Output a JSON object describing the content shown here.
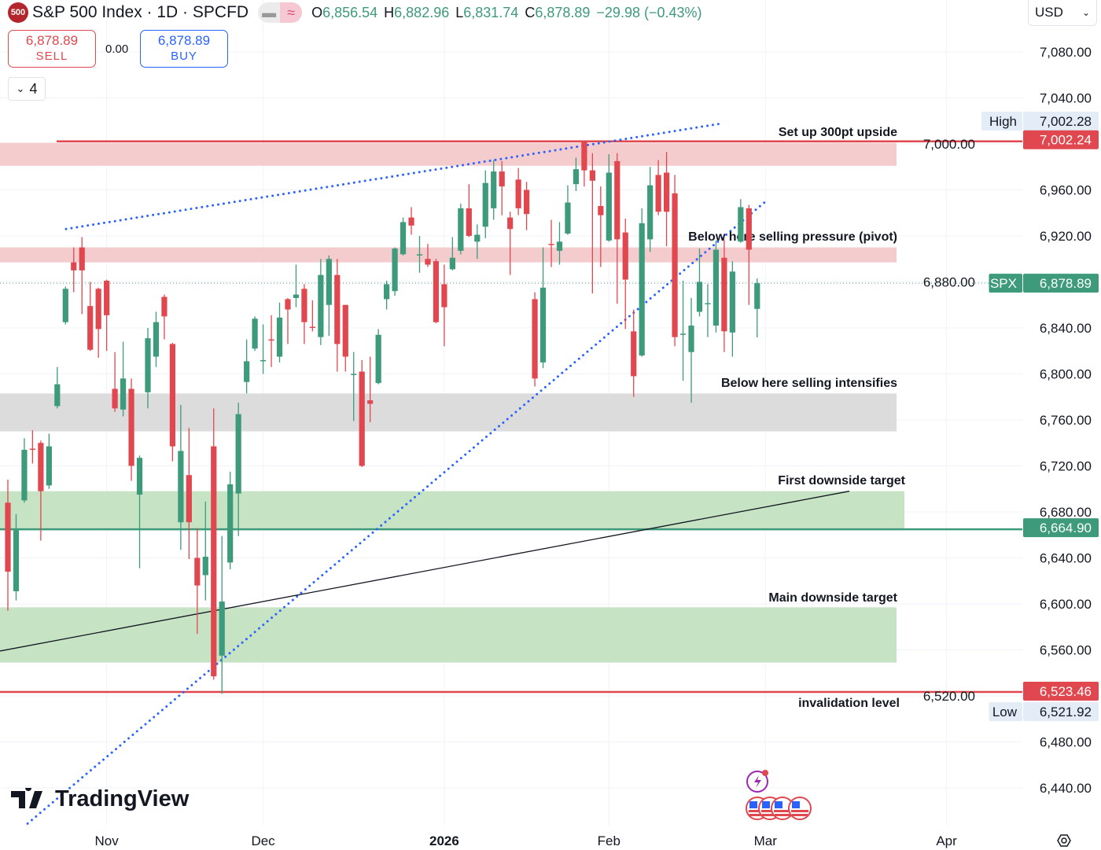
{
  "header": {
    "symbol_badge": "500",
    "title": "S&P 500 Index · 1D · SPCFD",
    "open_label": "O",
    "open": "6,856.54",
    "high_label": "H",
    "high": "6,882.96",
    "low_label": "L",
    "low": "6,831.74",
    "close_label": "C",
    "close": "6,878.89",
    "change": "−29.98 (−0.43%)"
  },
  "trade": {
    "sell_price": "6,878.89",
    "sell_label": "SELL",
    "spread": "0.00",
    "buy_price": "6,878.89",
    "buy_label": "BUY"
  },
  "indicators_toggle": {
    "count": "4"
  },
  "currency": "USD",
  "logo": "TradingView",
  "colors": {
    "up": "#3d9a7a",
    "down": "#e0474f",
    "trend": "#2962ff",
    "resistance_zone": "#f4cccd",
    "support_zone": "#c6e3c4",
    "neutral_zone": "#dcdcdd"
  },
  "chart_data": {
    "type": "candlestick",
    "symbol": "SPX",
    "ylim": [
      6410,
      7125
    ],
    "y_ticks": [
      "7,080.00",
      "7,040.00",
      "7,000.00",
      "6,960.00",
      "6,920.00",
      "6,880.00",
      "6,840.00",
      "6,800.00",
      "6,760.00",
      "6,720.00",
      "6,680.00",
      "6,640.00",
      "6,600.00",
      "6,560.00",
      "6,520.00",
      "6,480.00",
      "6,440.00"
    ],
    "y_tick_values": [
      7080,
      7040,
      7000,
      6960,
      6920,
      6880,
      6840,
      6800,
      6760,
      6720,
      6680,
      6640,
      6600,
      6560,
      6520,
      6480,
      6440
    ],
    "x_ticks": [
      "Nov",
      "Dec",
      "2026",
      "Feb",
      "Mar",
      "Apr"
    ],
    "grid": true,
    "candles_columns": [
      "date",
      "open",
      "high",
      "low",
      "close"
    ],
    "candles": [
      [
        "2025-10-16",
        6688,
        6708,
        6594,
        6628
      ],
      [
        "2025-10-17",
        6611,
        6678,
        6603,
        6664
      ],
      [
        "2025-10-20",
        6690,
        6744,
        6688,
        6734
      ],
      [
        "2025-10-21",
        6735,
        6751,
        6722,
        6734
      ],
      [
        "2025-10-22",
        6740,
        6742,
        6655,
        6698
      ],
      [
        "2025-10-23",
        6703,
        6748,
        6700,
        6737
      ],
      [
        "2025-10-24",
        6772,
        6806,
        6770,
        6791
      ],
      [
        "2025-10-27",
        6845,
        6876,
        6843,
        6874
      ],
      [
        "2025-10-28",
        6897,
        6910,
        6871,
        6890
      ],
      [
        "2025-10-29",
        6910,
        6919,
        6852,
        6890
      ],
      [
        "2025-10-30",
        6859,
        6880,
        6820,
        6821
      ],
      [
        "2025-10-31",
        6874,
        6875,
        6814,
        6839
      ],
      [
        "2025-11-03",
        6881,
        6882,
        6820,
        6851
      ],
      [
        "2025-11-04",
        6787,
        6819,
        6767,
        6770
      ],
      [
        "2025-11-05",
        6769,
        6828,
        6763,
        6796
      ],
      [
        "2025-11-06",
        6787,
        6796,
        6707,
        6720
      ],
      [
        "2025-11-07",
        6695,
        6729,
        6631,
        6727
      ],
      [
        "2025-11-10",
        6784,
        6840,
        6770,
        6831
      ],
      [
        "2025-11-11",
        6815,
        6854,
        6806,
        6845
      ],
      [
        "2025-11-12",
        6867,
        6869,
        6830,
        6850
      ],
      [
        "2025-11-13",
        6826,
        6827,
        6724,
        6737
      ],
      [
        "2025-11-14",
        6671,
        6773,
        6647,
        6733
      ],
      [
        "2025-11-17",
        6712,
        6753,
        6639,
        6671
      ],
      [
        "2025-11-18",
        6640,
        6666,
        6574,
        6616
      ],
      [
        "2025-11-19",
        6625,
        6689,
        6603,
        6641
      ],
      [
        "2025-11-20",
        6737,
        6770,
        6534,
        6537
      ],
      [
        "2025-11-21",
        6555,
        6659,
        6521.92,
        6602
      ],
      [
        "2025-11-24",
        6636,
        6715,
        6630,
        6704
      ],
      [
        "2025-11-25",
        6696,
        6775,
        6659,
        6765
      ],
      [
        "2025-11-26",
        6793,
        6830,
        6783,
        6811
      ],
      [
        "2025-11-28",
        6822,
        6850,
        6820,
        6848
      ],
      [
        "2025-12-01",
        6811,
        6843,
        6800,
        6812
      ],
      [
        "2025-12-02",
        6830,
        6851,
        6806,
        6829
      ],
      [
        "2025-12-03",
        6815,
        6862,
        6810,
        6849
      ],
      [
        "2025-12-04",
        6865,
        6866,
        6826,
        6856
      ],
      [
        "2025-12-05",
        6866,
        6895,
        6858,
        6869
      ],
      [
        "2025-12-08",
        6874,
        6878,
        6826,
        6845
      ],
      [
        "2025-12-09",
        6841,
        6864,
        6837,
        6840
      ],
      [
        "2025-12-10",
        6832,
        6900,
        6825,
        6886
      ],
      [
        "2025-12-11",
        6860,
        6903,
        6833,
        6900
      ],
      [
        "2025-12-12",
        6886,
        6900,
        6802,
        6826
      ],
      [
        "2025-12-15",
        6860,
        6860,
        6802,
        6815
      ],
      [
        "2025-12-16",
        6799,
        6819,
        6759,
        6800
      ],
      [
        "2025-12-17",
        6802,
        6812,
        6719,
        6720
      ],
      [
        "2025-12-18",
        6777,
        6815,
        6758,
        6774
      ],
      [
        "2025-12-19",
        6792,
        6839,
        6791,
        6834
      ],
      [
        "2025-12-22",
        6865,
        6881,
        6856,
        6878
      ],
      [
        "2025-12-23",
        6872,
        6910,
        6868,
        6909
      ],
      [
        "2025-12-24",
        6904,
        6936,
        6903,
        6932
      ],
      [
        "2025-12-26",
        6936,
        6945,
        6921,
        6929
      ],
      [
        "2025-12-29",
        6903,
        6920,
        6888,
        6904
      ],
      [
        "2025-12-30",
        6900,
        6913,
        6893,
        6895
      ],
      [
        "2025-12-31",
        6898,
        6900,
        6844,
        6845
      ],
      [
        "2026-01-02",
        6878,
        6895,
        6824,
        6858
      ],
      [
        "2026-01-05",
        6891,
        6919,
        6890,
        6901
      ],
      [
        "2026-01-06",
        6907,
        6948,
        6904,
        6944
      ],
      [
        "2026-01-07",
        6944,
        6965,
        6919,
        6920
      ],
      [
        "2026-01-08",
        6915,
        6930,
        6900,
        6921
      ],
      [
        "2026-01-09",
        6928,
        6977,
        6918,
        6966
      ],
      [
        "2026-01-12",
        6944,
        6986,
        6934,
        6976
      ],
      [
        "2026-01-13",
        6976,
        6985,
        6938,
        6963
      ],
      [
        "2026-01-14",
        6936,
        6941,
        6886,
        6926
      ],
      [
        "2026-01-15",
        6969,
        6979,
        6938,
        6944
      ],
      [
        "2026-01-16",
        6960,
        6967,
        6925,
        6939
      ],
      [
        "2026-01-20",
        6865,
        6871,
        6789,
        6796
      ],
      [
        "2026-01-21",
        6810,
        6910,
        6805,
        6875
      ],
      [
        "2026-01-22",
        6913,
        6934,
        6893,
        6912
      ],
      [
        "2026-01-23",
        6907,
        6932,
        6895,
        6915
      ],
      [
        "2026-01-26",
        6922,
        6964,
        6921,
        6949
      ],
      [
        "2026-01-27",
        6965,
        6988,
        6959,
        6978
      ],
      [
        "2026-01-28",
        7002,
        7002.28,
        6963,
        6977
      ],
      [
        "2026-01-29",
        6977,
        6992,
        6870,
        6968
      ],
      [
        "2026-01-30",
        6946,
        6963,
        6893,
        6938
      ],
      [
        "2026-02-02",
        6916,
        6991,
        6915,
        6975
      ],
      [
        "2026-02-03",
        6985,
        6992,
        6861,
        6917
      ],
      [
        "2026-02-04",
        6923,
        6935,
        6839,
        6882
      ],
      [
        "2026-02-05",
        6837,
        6856,
        6780,
        6798
      ],
      [
        "2026-02-06",
        6816,
        6944,
        6815,
        6931
      ],
      [
        "2026-02-09",
        6917,
        6980,
        6906,
        6964
      ],
      [
        "2026-02-10",
        6973,
        6986,
        6938,
        6941
      ],
      [
        "2026-02-11",
        6975,
        6993,
        6911,
        6941
      ],
      [
        "2026-02-12",
        6957,
        6973,
        6824,
        6832
      ],
      [
        "2026-02-13",
        6834,
        6881,
        6794,
        6835
      ],
      [
        "2026-02-17",
        6819,
        6866,
        6775,
        6842
      ],
      [
        "2026-02-18",
        6854,
        6909,
        6850,
        6880
      ],
      [
        "2026-02-19",
        6861,
        6878,
        6832,
        6861.5
      ],
      [
        "2026-02-20",
        6842,
        6916,
        6836,
        6908
      ],
      [
        "2026-02-23",
        6901,
        6917,
        6819,
        6837
      ],
      [
        "2026-02-24",
        6836,
        6898,
        6815,
        6889
      ],
      [
        "2026-02-25",
        6915,
        6952,
        6914,
        6945
      ],
      [
        "2026-02-26",
        6944,
        6947,
        6860,
        6908
      ],
      [
        "2026-02-27",
        6856.54,
        6882.96,
        6831.74,
        6878.89
      ]
    ],
    "zones": [
      {
        "top": 7001,
        "bottom": 6981,
        "kind": "resistance_zone",
        "label": "Set up 300pt upside"
      },
      {
        "top": 6910,
        "bottom": 6897,
        "kind": "resistance_zone",
        "label": "Below here selling pressure (pivot)"
      },
      {
        "top": 6783,
        "bottom": 6750,
        "kind": "neutral_zone",
        "label": "Below here selling intensifies"
      },
      {
        "top": 6698,
        "bottom": 6664,
        "kind": "support_zone",
        "label": "First downside target"
      },
      {
        "top": 6597,
        "bottom": 6549,
        "kind": "support_zone",
        "label": "Main downside target"
      }
    ],
    "horizontal_lines": [
      {
        "price": 7002.24,
        "label": "7,002.24",
        "color": "#e0474f"
      },
      {
        "price": 6664.9,
        "label": "6,664.90",
        "color": "#3d9a7a"
      },
      {
        "price": 6523.46,
        "label": "6,523.46",
        "color": "#e0474f",
        "note": "invalidation level"
      }
    ],
    "trend_lines": [
      {
        "style": "dotted",
        "color": "#2962ff",
        "from_price": 6926,
        "to_price": 7018
      },
      {
        "style": "dotted",
        "color": "#2962ff",
        "from_price": 6409,
        "to_price": 6951
      },
      {
        "style": "solid",
        "color": "#131722",
        "from_price": 6559,
        "to_price": 6698
      }
    ],
    "last_price": {
      "label": "SPX",
      "value": "6,878.89",
      "price": 6878.89
    },
    "high_marker": {
      "label": "High",
      "value": "7,002.28"
    },
    "low_marker": {
      "label": "Low",
      "value": "6,521.92"
    }
  },
  "events": {
    "icons": [
      "lightning-icon",
      "us-flag-icon",
      "us-flag-icon",
      "us-flag-icon",
      "us-flag-icon"
    ]
  }
}
